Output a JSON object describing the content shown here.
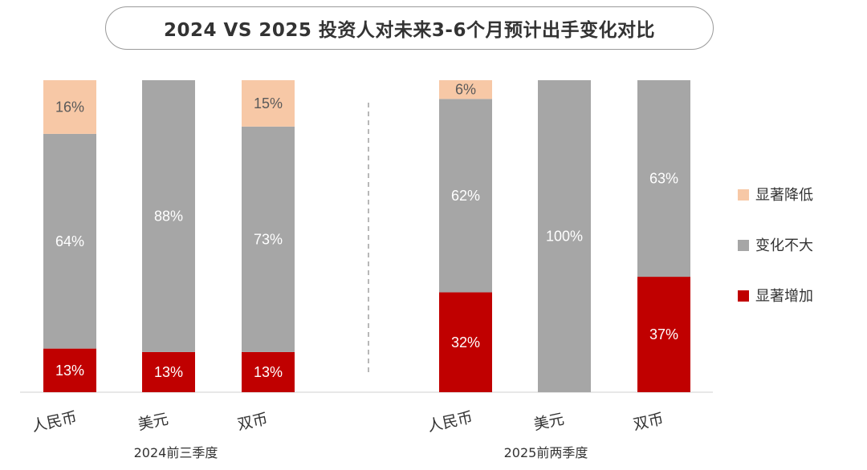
{
  "title": "2024 VS 2025 投资人对未来3-6个月预计出手变化对比",
  "colors": {
    "decrease": "#f7c8a6",
    "unchanged": "#a6a6a6",
    "increase": "#c00000",
    "label_on_light": "#5a5a5a",
    "label_on_dark": "#ffffff"
  },
  "chart_data": {
    "type": "bar",
    "stacked": true,
    "title": "2024 VS 2025 投资人对未来3-6个月预计出手变化对比",
    "groups": [
      {
        "label": "2024前三季度",
        "categories": [
          "人民币",
          "美元",
          "双币"
        ],
        "series": [
          {
            "name": "显著增加",
            "values": [
              13,
              13,
              13
            ],
            "labels": [
              "13%",
              "13%",
              "13%"
            ]
          },
          {
            "name": "变化不大",
            "values": [
              64,
              88,
              73
            ],
            "labels": [
              "64%",
              "88%",
              "73%"
            ]
          },
          {
            "name": "显著降低",
            "values": [
              16,
              0,
              15
            ],
            "labels": [
              "16%",
              "",
              "15%"
            ]
          }
        ]
      },
      {
        "label": "2025前两季度",
        "categories": [
          "人民币",
          "美元",
          "双币"
        ],
        "series": [
          {
            "name": "显著增加",
            "values": [
              32,
              0,
              37
            ],
            "labels": [
              "32%",
              "",
              "37%"
            ]
          },
          {
            "name": "变化不大",
            "values": [
              62,
              100,
              63
            ],
            "labels": [
              "62%",
              "100%",
              "63%"
            ]
          },
          {
            "name": "显著降低",
            "values": [
              6,
              0,
              0
            ],
            "labels": [
              "6%",
              "",
              ""
            ]
          }
        ]
      }
    ],
    "legend": {
      "position": "right",
      "items": [
        "显著降低",
        "变化不大",
        "显著增加"
      ]
    },
    "grid": false
  }
}
